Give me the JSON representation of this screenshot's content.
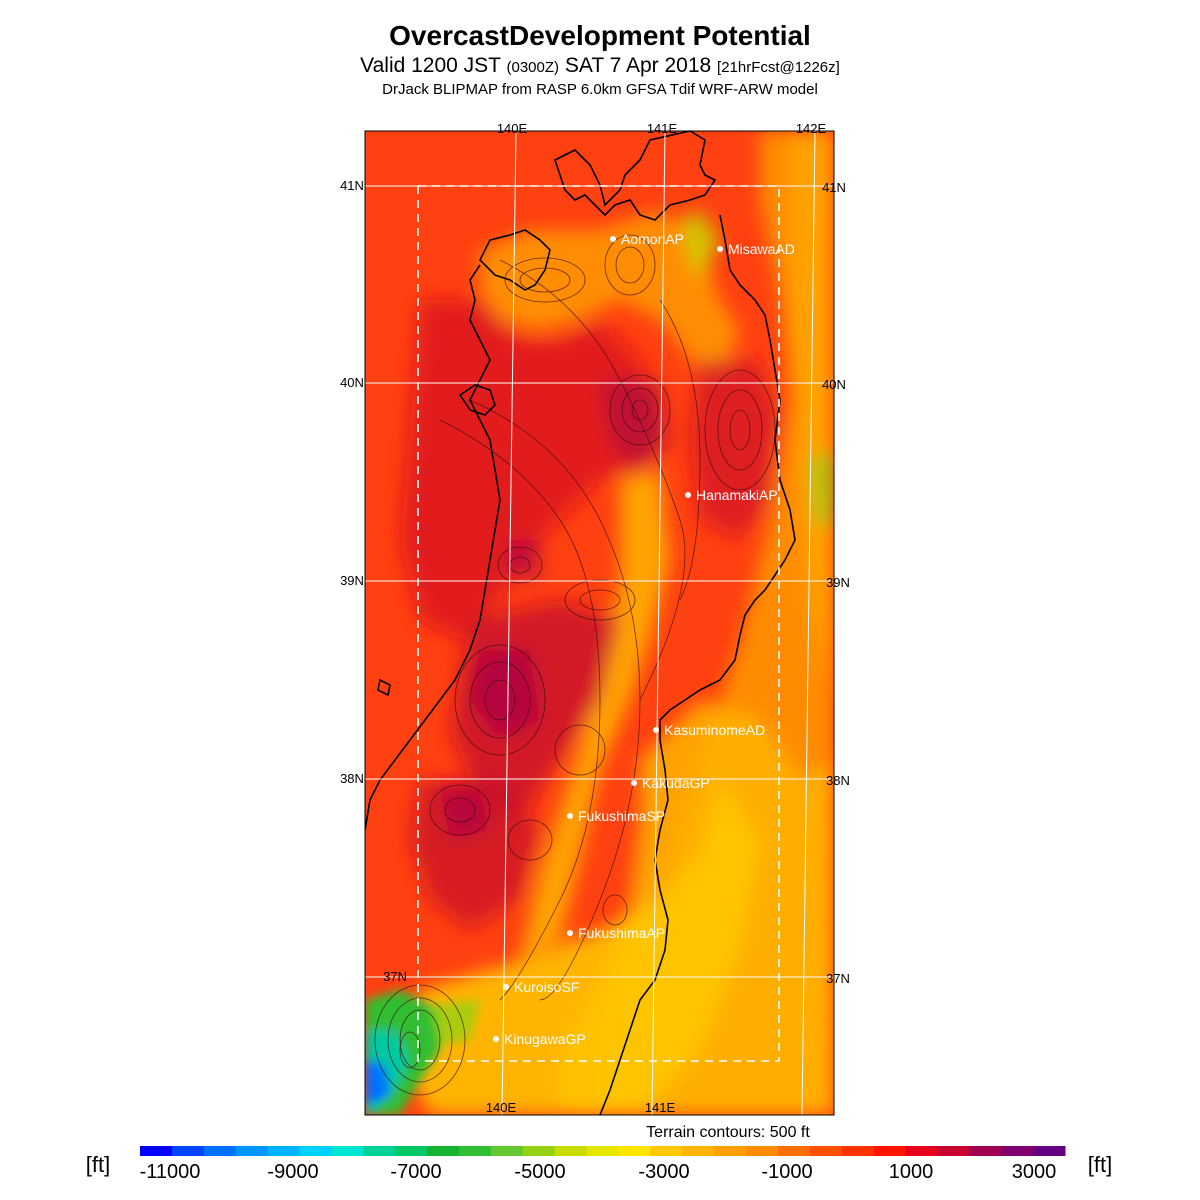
{
  "title": "OvercastDevelopment Potential",
  "subtitle": {
    "valid": "Valid 1200 JST",
    "utc": "(0300Z)",
    "date": "SAT 7 Apr 2018",
    "forecast": "[21hrFcst@1226z]"
  },
  "model_line": "DrJack BLIPMAP from RASP 6.0km GFSA Tdif WRF-ARW model",
  "terrain_note": "Terrain contours: 500 ft",
  "units": "[ft]",
  "lon_labels_top": [
    "140E",
    "141E",
    "142E"
  ],
  "lon_labels_bottom": [
    "140E",
    "141E"
  ],
  "lat_labels": [
    "41N",
    "40N",
    "39N",
    "38N",
    "37N"
  ],
  "stations": [
    {
      "name": "AomoriAP"
    },
    {
      "name": "MisawaAD"
    },
    {
      "name": "HanamakiAP"
    },
    {
      "name": "KasuminomeAD"
    },
    {
      "name": "KakudaGP"
    },
    {
      "name": "FukushimaSP"
    },
    {
      "name": "FukushimaAP"
    },
    {
      "name": "KuroisoSF"
    },
    {
      "name": "KinugawaGP"
    }
  ],
  "colorbar": {
    "labels": [
      "-11000",
      "-9000",
      "-7000",
      "-5000",
      "-3000",
      "-1000",
      "1000",
      "3000"
    ],
    "colors": [
      "#0000ff",
      "#0044ff",
      "#0070ff",
      "#0096ff",
      "#00b4ff",
      "#00d2ff",
      "#00e6d2",
      "#00d296",
      "#00c864",
      "#14b432",
      "#32be32",
      "#64c832",
      "#96d214",
      "#c8dc00",
      "#e6e600",
      "#ffe600",
      "#ffc800",
      "#ffb400",
      "#ffa000",
      "#ff8c00",
      "#ff6e00",
      "#ff5000",
      "#ff3200",
      "#ff1400",
      "#e6001e",
      "#c80032",
      "#a00050",
      "#82006e",
      "#640082"
    ]
  },
  "colors": {
    "field_base": "#ff4010",
    "field_dark": "#c8102a",
    "field_yellow": "#ffc800",
    "field_orange": "#ff8c00",
    "field_green": "#00c864",
    "field_blue": "#0070ff",
    "coast": "#000000",
    "grid": "#ffffff"
  }
}
